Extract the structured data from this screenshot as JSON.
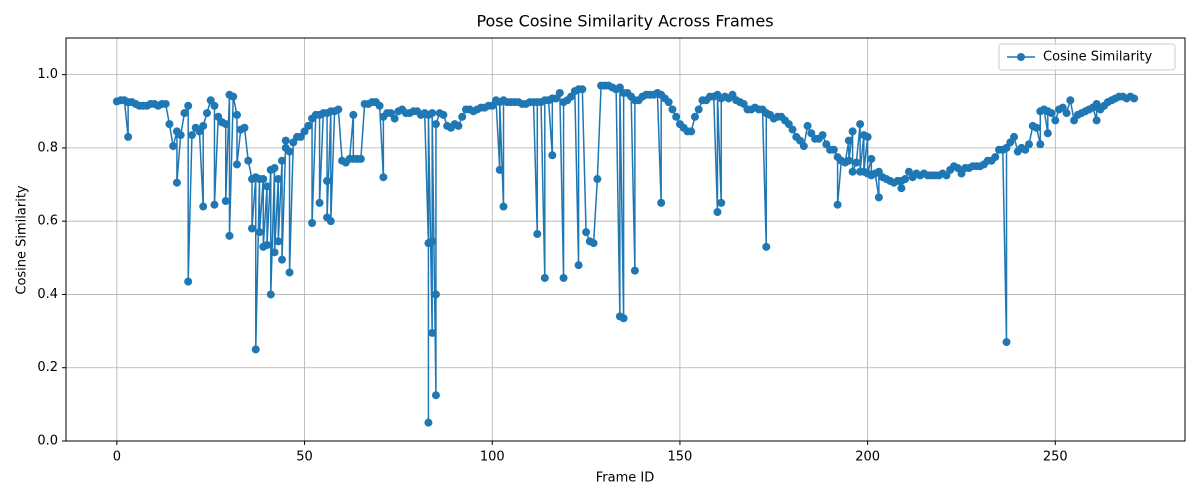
{
  "chart_data": {
    "type": "line",
    "title": "Pose Cosine Similarity Across Frames",
    "xlabel": "Frame ID",
    "ylabel": "Cosine Similarity",
    "x": [
      0,
      1,
      2,
      3,
      3,
      4,
      5,
      6,
      7,
      8,
      9,
      10,
      11,
      12,
      13,
      14,
      15,
      16,
      16,
      17,
      18,
      19,
      19,
      20,
      21,
      22,
      23,
      23,
      24,
      25,
      26,
      26,
      27,
      28,
      29,
      29,
      30,
      30,
      31,
      32,
      32,
      33,
      34,
      35,
      36,
      36,
      37,
      37,
      38,
      38,
      39,
      39,
      40,
      40,
      41,
      41,
      42,
      42,
      43,
      43,
      44,
      44,
      45,
      45,
      46,
      46,
      47,
      48,
      49,
      50,
      51,
      52,
      52,
      53,
      54,
      54,
      55,
      56,
      56,
      56,
      57,
      57,
      58,
      59,
      60,
      61,
      62,
      63,
      63,
      64,
      65,
      66,
      67,
      68,
      69,
      70,
      71,
      71,
      72,
      73,
      74,
      75,
      76,
      77,
      78,
      79,
      80,
      81,
      82,
      83,
      83,
      83,
      84,
      84,
      84,
      85,
      85,
      85,
      86,
      87,
      88,
      89,
      90,
      91,
      92,
      93,
      94,
      95,
      96,
      97,
      98,
      99,
      100,
      101,
      102,
      102,
      103,
      103,
      104,
      105,
      106,
      107,
      108,
      109,
      110,
      111,
      112,
      112,
      113,
      114,
      114,
      115,
      116,
      116,
      117,
      118,
      119,
      119,
      120,
      121,
      122,
      123,
      123,
      124,
      125,
      126,
      127,
      128,
      129,
      130,
      131,
      132,
      133,
      134,
      134,
      135,
      135,
      136,
      137,
      138,
      138,
      139,
      140,
      141,
      142,
      143,
      144,
      145,
      145,
      146,
      147,
      148,
      149,
      150,
      151,
      152,
      153,
      154,
      155,
      156,
      157,
      158,
      159,
      160,
      160,
      161,
      161,
      162,
      163,
      164,
      165,
      166,
      167,
      168,
      169,
      170,
      171,
      172,
      173,
      173,
      174,
      175,
      176,
      177,
      178,
      179,
      180,
      181,
      182,
      183,
      184,
      185,
      186,
      187,
      188,
      189,
      190,
      191,
      192,
      192,
      193,
      194,
      195,
      195,
      196,
      196,
      197,
      198,
      198,
      199,
      199,
      200,
      200,
      201,
      201,
      202,
      203,
      203,
      204,
      205,
      206,
      207,
      208,
      209,
      209,
      210,
      211,
      212,
      213,
      214,
      215,
      216,
      217,
      218,
      219,
      220,
      221,
      222,
      223,
      224,
      225,
      226,
      227,
      228,
      229,
      230,
      231,
      232,
      233,
      234,
      235,
      236,
      237,
      237,
      238,
      239,
      240,
      241,
      242,
      243,
      244,
      245,
      246,
      246,
      247,
      248,
      248,
      249,
      250,
      251,
      252,
      253,
      254,
      255,
      256,
      257,
      258,
      259,
      260,
      261,
      261,
      262,
      263,
      264,
      265,
      266,
      267,
      268,
      269,
      270,
      271
    ],
    "series": [
      {
        "name": "Cosine Similarity",
        "color": "#1f77b4",
        "values": [
          0.927,
          0.93,
          0.93,
          0.83,
          0.925,
          0.925,
          0.92,
          0.915,
          0.915,
          0.915,
          0.92,
          0.92,
          0.915,
          0.92,
          0.92,
          0.865,
          0.805,
          0.845,
          0.705,
          0.835,
          0.895,
          0.915,
          0.435,
          0.835,
          0.855,
          0.845,
          0.64,
          0.86,
          0.895,
          0.93,
          0.915,
          0.645,
          0.885,
          0.87,
          0.865,
          0.655,
          0.945,
          0.56,
          0.94,
          0.89,
          0.755,
          0.85,
          0.855,
          0.765,
          0.715,
          0.58,
          0.72,
          0.25,
          0.715,
          0.57,
          0.715,
          0.53,
          0.695,
          0.535,
          0.74,
          0.4,
          0.745,
          0.515,
          0.715,
          0.545,
          0.765,
          0.495,
          0.82,
          0.8,
          0.79,
          0.46,
          0.815,
          0.83,
          0.83,
          0.845,
          0.86,
          0.88,
          0.595,
          0.89,
          0.89,
          0.65,
          0.895,
          0.895,
          0.71,
          0.61,
          0.9,
          0.6,
          0.9,
          0.905,
          0.765,
          0.76,
          0.77,
          0.89,
          0.77,
          0.77,
          0.77,
          0.92,
          0.92,
          0.925,
          0.925,
          0.915,
          0.72,
          0.885,
          0.895,
          0.895,
          0.88,
          0.9,
          0.905,
          0.895,
          0.895,
          0.9,
          0.9,
          0.89,
          0.895,
          0.54,
          0.05,
          0.89,
          0.295,
          0.545,
          0.895,
          0.125,
          0.4,
          0.865,
          0.895,
          0.89,
          0.86,
          0.855,
          0.865,
          0.86,
          0.885,
          0.905,
          0.905,
          0.9,
          0.905,
          0.91,
          0.91,
          0.915,
          0.915,
          0.93,
          0.74,
          0.925,
          0.64,
          0.93,
          0.925,
          0.925,
          0.925,
          0.925,
          0.92,
          0.92,
          0.925,
          0.925,
          0.565,
          0.925,
          0.925,
          0.445,
          0.93,
          0.93,
          0.78,
          0.935,
          0.935,
          0.95,
          0.445,
          0.925,
          0.93,
          0.94,
          0.955,
          0.48,
          0.96,
          0.96,
          0.57,
          0.545,
          0.54,
          0.715,
          0.97,
          0.97,
          0.97,
          0.965,
          0.96,
          0.34,
          0.965,
          0.335,
          0.95,
          0.95,
          0.94,
          0.465,
          0.93,
          0.93,
          0.94,
          0.945,
          0.945,
          0.945,
          0.95,
          0.65,
          0.945,
          0.935,
          0.925,
          0.905,
          0.885,
          0.865,
          0.855,
          0.845,
          0.845,
          0.885,
          0.905,
          0.93,
          0.93,
          0.94,
          0.94,
          0.625,
          0.945,
          0.65,
          0.935,
          0.94,
          0.935,
          0.945,
          0.93,
          0.925,
          0.92,
          0.905,
          0.905,
          0.91,
          0.905,
          0.905,
          0.53,
          0.895,
          0.89,
          0.88,
          0.885,
          0.885,
          0.875,
          0.865,
          0.85,
          0.83,
          0.82,
          0.805,
          0.86,
          0.84,
          0.825,
          0.825,
          0.835,
          0.81,
          0.795,
          0.795,
          0.775,
          0.645,
          0.765,
          0.76,
          0.82,
          0.765,
          0.845,
          0.735,
          0.76,
          0.865,
          0.735,
          0.835,
          0.735,
          0.83,
          0.73,
          0.77,
          0.725,
          0.73,
          0.665,
          0.735,
          0.72,
          0.715,
          0.71,
          0.705,
          0.71,
          0.69,
          0.71,
          0.715,
          0.735,
          0.72,
          0.73,
          0.725,
          0.73,
          0.725,
          0.725,
          0.725,
          0.725,
          0.73,
          0.725,
          0.74,
          0.75,
          0.745,
          0.73,
          0.745,
          0.745,
          0.75,
          0.75,
          0.75,
          0.755,
          0.765,
          0.765,
          0.775,
          0.795,
          0.795,
          0.27,
          0.8,
          0.815,
          0.83,
          0.79,
          0.8,
          0.795,
          0.81,
          0.86,
          0.855,
          0.81,
          0.9,
          0.905,
          0.84,
          0.9,
          0.895,
          0.875,
          0.905,
          0.91,
          0.895,
          0.93,
          0.875,
          0.89,
          0.895,
          0.9,
          0.905,
          0.91,
          0.875,
          0.92,
          0.905,
          0.915,
          0.925,
          0.93,
          0.935,
          0.94,
          0.94,
          0.935,
          0.94,
          0.935
        ]
      }
    ],
    "xlim": [
      -13.55,
      284.55
    ],
    "ylim": [
      0,
      1.1
    ],
    "xticks": [
      0,
      50,
      100,
      150,
      200,
      250
    ],
    "yticks": [
      {
        "value": 0,
        "label": "0.0"
      },
      {
        "value": 0.2,
        "label": "0.2"
      },
      {
        "value": 0.4,
        "label": "0.4"
      },
      {
        "value": 0.6,
        "label": "0.6"
      },
      {
        "value": 0.8,
        "label": "0.8"
      },
      {
        "value": 1.0,
        "label": "1.0"
      }
    ],
    "grid": true,
    "legend": "upper-right"
  }
}
